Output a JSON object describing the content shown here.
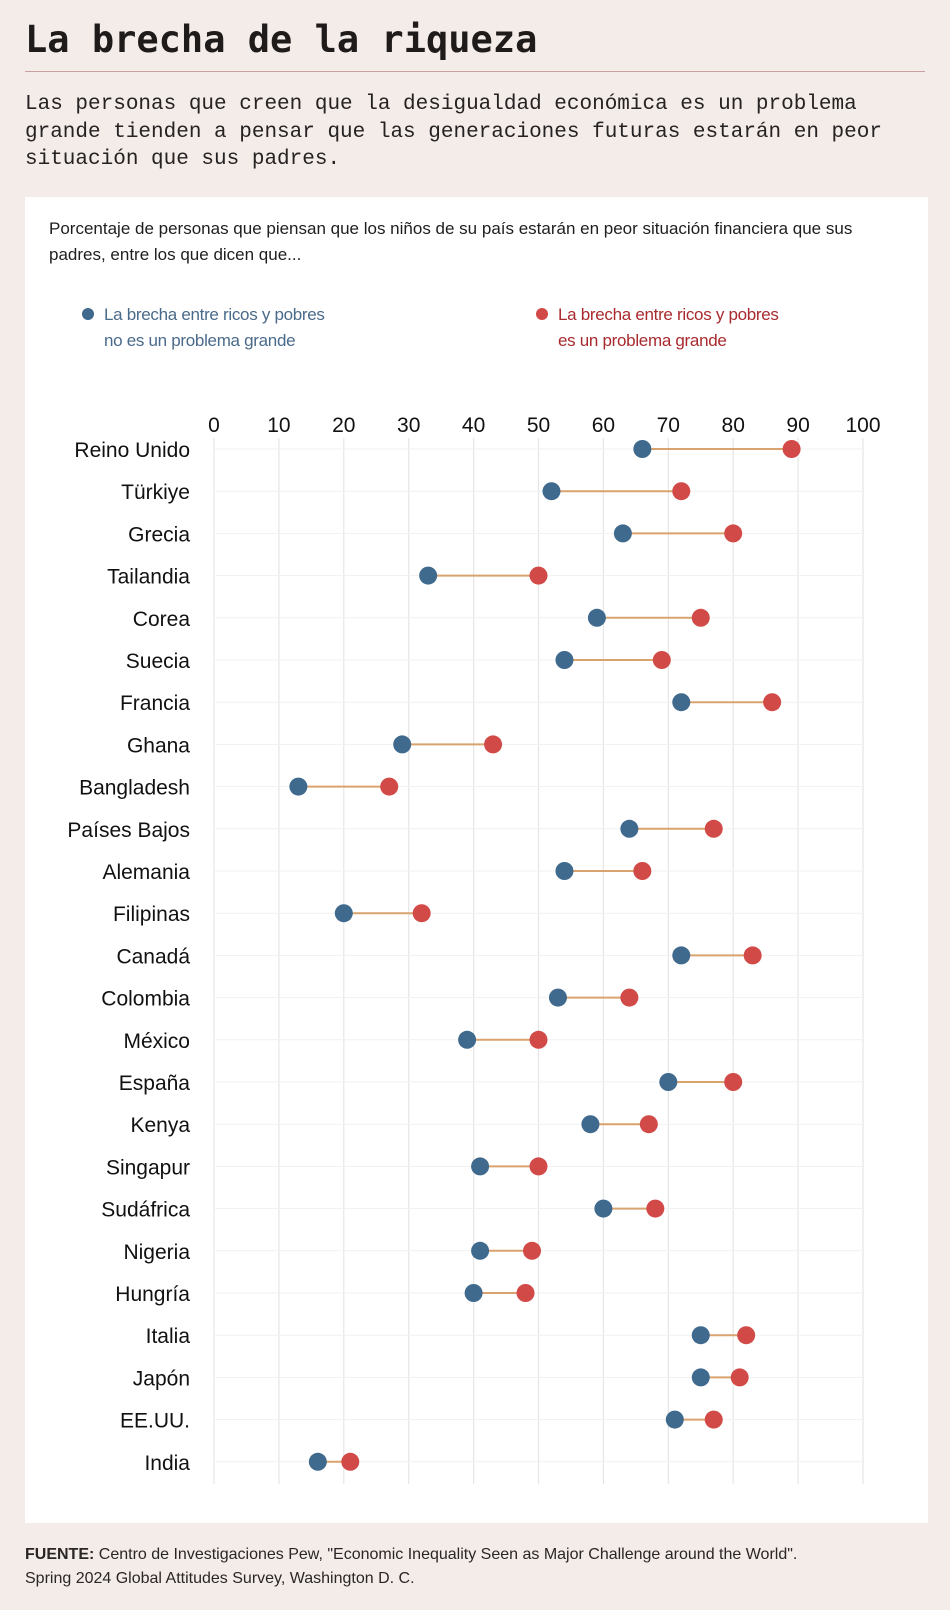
{
  "header": {
    "title": "La brecha de la riqueza",
    "subtitle": "Las personas que creen que la desigualdad económica es un problema grande tienden a pensar que las generaciones futuras estarán en peor situación que sus padres."
  },
  "colors": {
    "blue": "#3f6a8e",
    "red": "#d24a47",
    "connector": "#d9a36f",
    "gridline": "#e6e6e6",
    "legend_blue_text": "#4a6a8a",
    "legend_red_text": "#a82a2e",
    "divider": "#c9a0a0",
    "background": "#f3ece9",
    "panel": "#ffffff"
  },
  "chart_data": {
    "type": "dumbbell",
    "title": "Porcentaje de personas que piensan que los niños de su país estarán en peor situación financiera que sus padres, entre los que dicen que...",
    "xlabel": "",
    "ylabel": "",
    "xlim": [
      0,
      100
    ],
    "xticks": [
      0,
      10,
      20,
      30,
      40,
      50,
      60,
      70,
      80,
      90,
      100
    ],
    "grid": true,
    "legend_position": "top",
    "series": [
      {
        "name": "La brecha entre ricos y pobres no es un problema grande",
        "legend_lines": [
          "La brecha entre ricos y pobres",
          "no es un problema grande"
        ],
        "color": "#3f6a8e",
        "key": "not_big"
      },
      {
        "name": "La brecha entre ricos y pobres es un problema grande",
        "legend_lines": [
          "La brecha entre ricos y pobres",
          "es un problema grande"
        ],
        "color": "#d24a47",
        "key": "big"
      }
    ],
    "categories": [
      "Reino Unido",
      "Türkiye",
      "Grecia",
      "Tailandia",
      "Corea",
      "Suecia",
      "Francia",
      "Ghana",
      "Bangladesh",
      "Países Bajos",
      "Alemania",
      "Filipinas",
      "Canadá",
      "Colombia",
      "México",
      "España",
      "Kenya",
      "Singapur",
      "Sudáfrica",
      "Nigeria",
      "Hungría",
      "Italia",
      "Japón",
      "EE.UU.",
      "India"
    ],
    "not_big": [
      66,
      52,
      63,
      33,
      59,
      54,
      72,
      29,
      13,
      64,
      54,
      20,
      72,
      53,
      39,
      70,
      58,
      41,
      60,
      41,
      40,
      75,
      75,
      71,
      16
    ],
    "big": [
      89,
      72,
      80,
      50,
      75,
      69,
      86,
      43,
      27,
      77,
      66,
      32,
      83,
      64,
      50,
      80,
      67,
      50,
      68,
      49,
      48,
      82,
      81,
      77,
      21
    ]
  },
  "footer": {
    "source_label": "FUENTE:",
    "source_text": " Centro de Investigaciones Pew, \"Economic Inequality Seen as Major Challenge around the World\".",
    "source_line2": "Spring 2024 Global Attitudes Survey, Washington D. C."
  }
}
